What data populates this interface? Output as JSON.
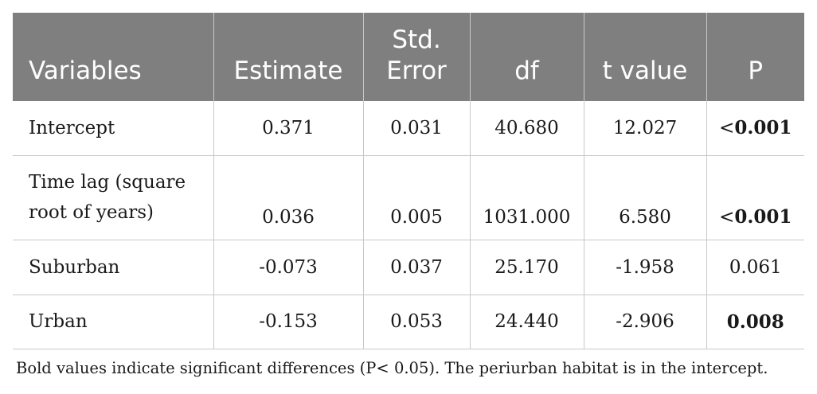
{
  "table": {
    "headers": [
      {
        "lines": [
          "Variables"
        ]
      },
      {
        "lines": [
          "Estimate"
        ]
      },
      {
        "lines": [
          "Std.",
          "Error"
        ]
      },
      {
        "lines": [
          "df"
        ]
      },
      {
        "lines": [
          "t value"
        ]
      },
      {
        "lines": [
          "P"
        ]
      }
    ],
    "rows": [
      {
        "variable_lines": [
          "Intercept"
        ],
        "estimate": "0.371",
        "std_error": "0.031",
        "df": "40.680",
        "t_value": "12.027",
        "p_prefix": "<",
        "p_value": "0.001",
        "p_bold": true
      },
      {
        "variable_lines": [
          "Time lag (square",
          "root of years)"
        ],
        "estimate": "0.036",
        "std_error": "0.005",
        "df": "1031.000",
        "t_value": "6.580",
        "p_prefix": "<",
        "p_value": "0.001",
        "p_bold": true
      },
      {
        "variable_lines": [
          "Suburban"
        ],
        "estimate": "-0.073",
        "std_error": "0.037",
        "df": "25.170",
        "t_value": "-1.958",
        "p_prefix": "",
        "p_value": "0.061",
        "p_bold": false
      },
      {
        "variable_lines": [
          "Urban"
        ],
        "estimate": "-0.153",
        "std_error": "0.053",
        "df": "24.440",
        "t_value": "-2.906",
        "p_prefix": "",
        "p_value": "0.008",
        "p_bold": true
      }
    ]
  },
  "footnote": "Bold values indicate significant differences (P< 0.05). The periurban habitat is in the intercept.",
  "colors": {
    "header_bg": "#7f7f7f",
    "header_text": "#ffffff",
    "grid": "#c8c8c8"
  }
}
